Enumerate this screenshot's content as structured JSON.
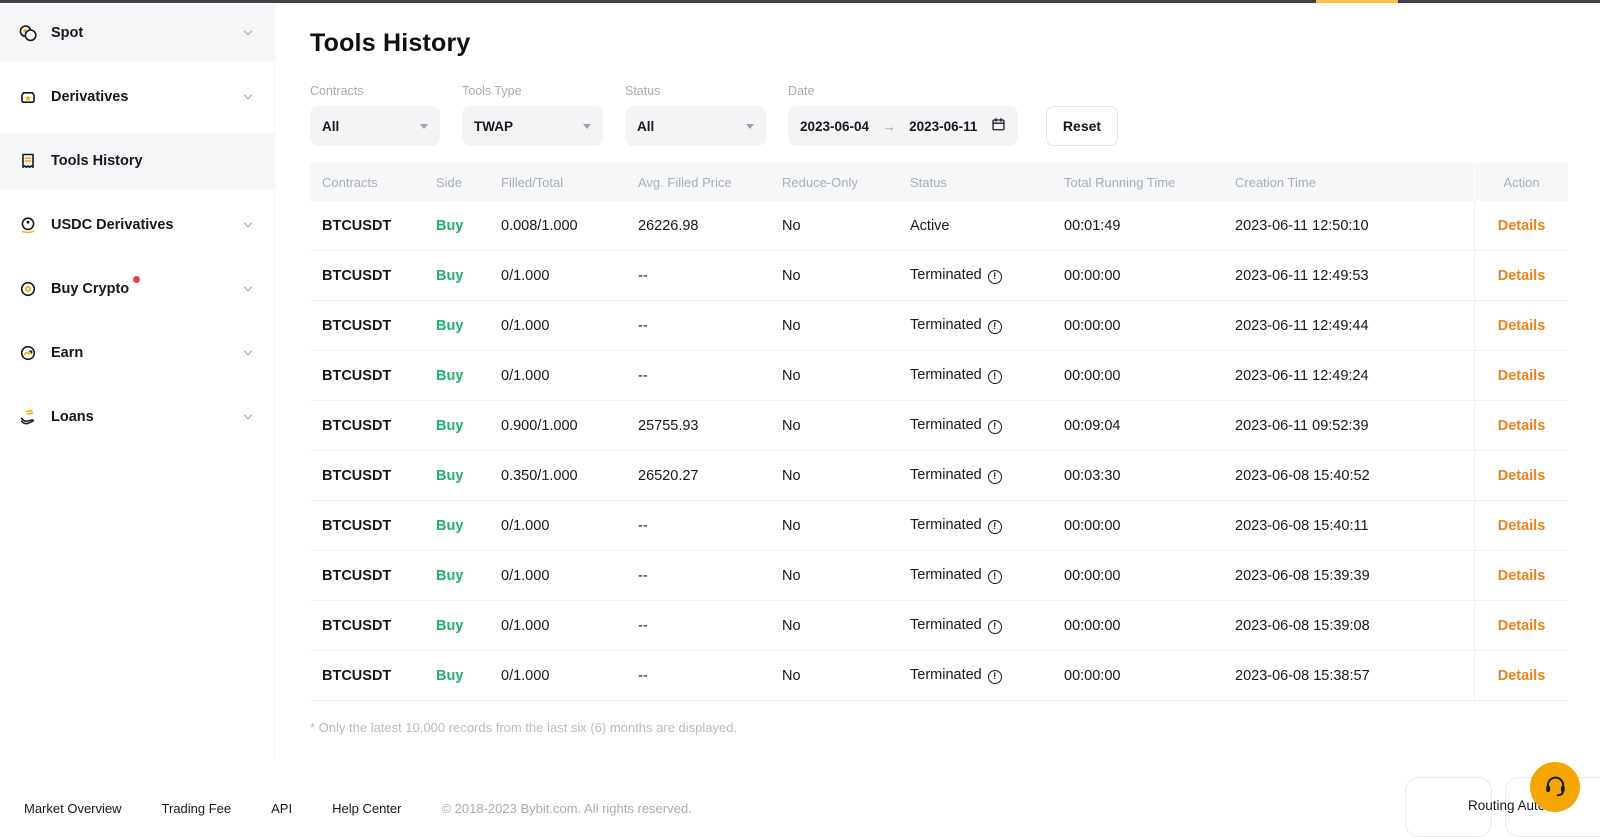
{
  "page": {
    "title": "Tools History"
  },
  "sidebar": {
    "items": [
      {
        "label": "Spot"
      },
      {
        "label": "Derivatives"
      },
      {
        "label": "Tools History"
      },
      {
        "label": "USDC Derivatives"
      },
      {
        "label": "Buy Crypto"
      },
      {
        "label": "Earn"
      },
      {
        "label": "Loans"
      }
    ]
  },
  "filters": {
    "contracts_label": "Contracts",
    "contracts_value": "All",
    "tools_type_label": "Tools Type",
    "tools_type_value": "TWAP",
    "status_label": "Status",
    "status_value": "All",
    "date_label": "Date",
    "date_from": "2023-06-04",
    "date_arrow": "→",
    "date_to": "2023-06-11",
    "reset_label": "Reset"
  },
  "table": {
    "columns": [
      "Contracts",
      "Side",
      "Filled/Total",
      "Avg. Filled Price",
      "Reduce-Only",
      "Status",
      "Total Running Time",
      "Creation Time",
      "Action"
    ],
    "rows": [
      {
        "contracts": "BTCUSDT",
        "side": "Buy",
        "filled_total": "0.008/1.000",
        "avg_filled_price": "26226.98",
        "reduce_only": "No",
        "status": "Active",
        "status_info": false,
        "total_running_time": "00:01:49",
        "creation_time": "2023-06-11 12:50:10",
        "action": "Details"
      },
      {
        "contracts": "BTCUSDT",
        "side": "Buy",
        "filled_total": "0/1.000",
        "avg_filled_price": "--",
        "reduce_only": "No",
        "status": "Terminated",
        "status_info": true,
        "total_running_time": "00:00:00",
        "creation_time": "2023-06-11 12:49:53",
        "action": "Details"
      },
      {
        "contracts": "BTCUSDT",
        "side": "Buy",
        "filled_total": "0/1.000",
        "avg_filled_price": "--",
        "reduce_only": "No",
        "status": "Terminated",
        "status_info": true,
        "total_running_time": "00:00:00",
        "creation_time": "2023-06-11 12:49:44",
        "action": "Details"
      },
      {
        "contracts": "BTCUSDT",
        "side": "Buy",
        "filled_total": "0/1.000",
        "avg_filled_price": "--",
        "reduce_only": "No",
        "status": "Terminated",
        "status_info": true,
        "total_running_time": "00:00:00",
        "creation_time": "2023-06-11 12:49:24",
        "action": "Details"
      },
      {
        "contracts": "BTCUSDT",
        "side": "Buy",
        "filled_total": "0.900/1.000",
        "avg_filled_price": "25755.93",
        "reduce_only": "No",
        "status": "Terminated",
        "status_info": true,
        "total_running_time": "00:09:04",
        "creation_time": "2023-06-11 09:52:39",
        "action": "Details"
      },
      {
        "contracts": "BTCUSDT",
        "side": "Buy",
        "filled_total": "0.350/1.000",
        "avg_filled_price": "26520.27",
        "reduce_only": "No",
        "status": "Terminated",
        "status_info": true,
        "total_running_time": "00:03:30",
        "creation_time": "2023-06-08 15:40:52",
        "action": "Details"
      },
      {
        "contracts": "BTCUSDT",
        "side": "Buy",
        "filled_total": "0/1.000",
        "avg_filled_price": "--",
        "reduce_only": "No",
        "status": "Terminated",
        "status_info": true,
        "total_running_time": "00:00:00",
        "creation_time": "2023-06-08 15:40:11",
        "action": "Details"
      },
      {
        "contracts": "BTCUSDT",
        "side": "Buy",
        "filled_total": "0/1.000",
        "avg_filled_price": "--",
        "reduce_only": "No",
        "status": "Terminated",
        "status_info": true,
        "total_running_time": "00:00:00",
        "creation_time": "2023-06-08 15:39:39",
        "action": "Details"
      },
      {
        "contracts": "BTCUSDT",
        "side": "Buy",
        "filled_total": "0/1.000",
        "avg_filled_price": "--",
        "reduce_only": "No",
        "status": "Terminated",
        "status_info": true,
        "total_running_time": "00:00:00",
        "creation_time": "2023-06-08 15:39:08",
        "action": "Details"
      },
      {
        "contracts": "BTCUSDT",
        "side": "Buy",
        "filled_total": "0/1.000",
        "avg_filled_price": "--",
        "reduce_only": "No",
        "status": "Terminated",
        "status_info": true,
        "total_running_time": "00:00:00",
        "creation_time": "2023-06-08 15:38:57",
        "action": "Details"
      }
    ]
  },
  "footnote": "* Only the latest 10,000 records from the last six (6) months are displayed.",
  "footer": {
    "links": [
      "Market Overview",
      "Trading Fee",
      "API",
      "Help Center"
    ],
    "copyright": "© 2018-2023 Bybit.com. All rights reserved."
  },
  "floating": {
    "routing_label": "Routing Auto"
  },
  "colors": {
    "brand_orange": "#f7a600",
    "link_orange": "#ed821c",
    "buy_green": "#20b26c",
    "badge_red": "#f23d49",
    "progress_yellow": "#fcc43c"
  }
}
